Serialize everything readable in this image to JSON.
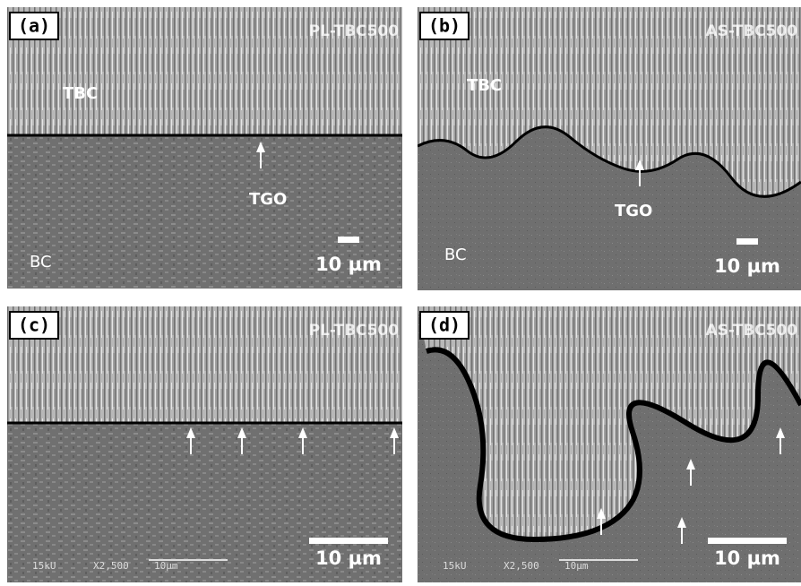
{
  "panels": [
    {
      "label": "(a)",
      "sample": "PL-TBC500",
      "regions": [
        "TBC",
        "TGO",
        "BC"
      ],
      "scale": "10 µm"
    },
    {
      "label": "(b)",
      "sample": "AS-TBC500",
      "regions": [
        "TBC",
        "TGO",
        "BC"
      ],
      "scale": "10 µm"
    },
    {
      "label": "(c)",
      "sample": "PL-TBC500",
      "scale": "10 µm",
      "footer": [
        "15kU",
        "X2,500",
        "10µm"
      ]
    },
    {
      "label": "(d)",
      "sample": "AS-TBC500",
      "scale": "10 µm",
      "footer": [
        "15kU",
        "X2,500",
        "10µm"
      ]
    }
  ]
}
